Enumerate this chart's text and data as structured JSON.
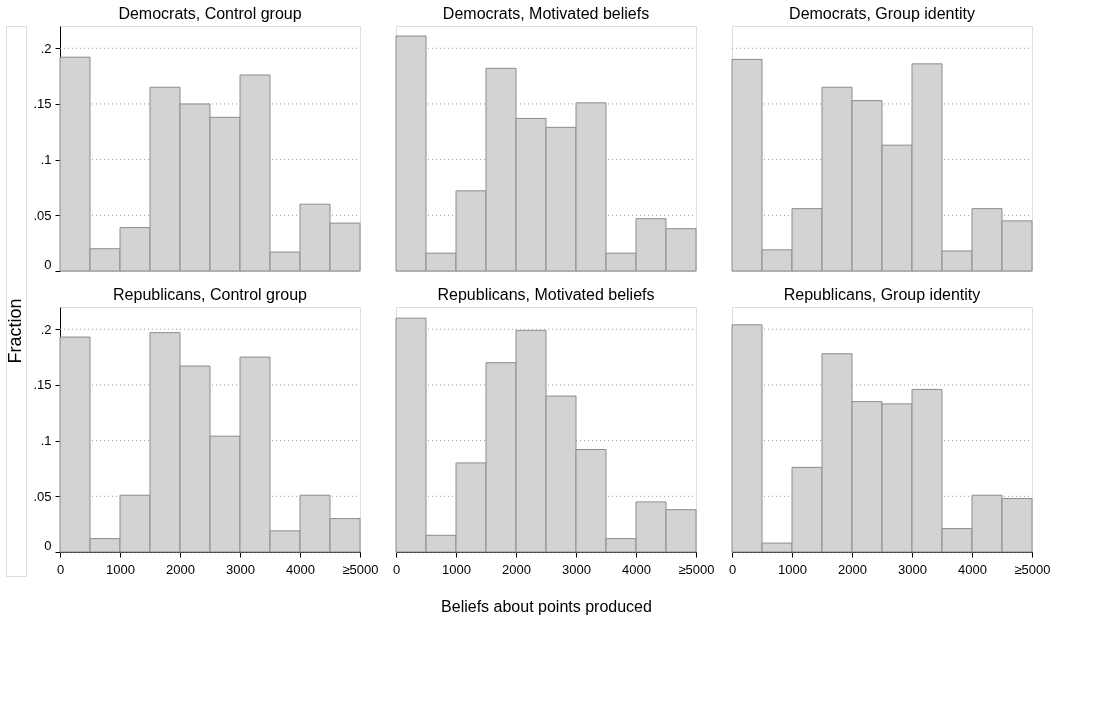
{
  "chart_data": [
    {
      "type": "histogram",
      "title": "Democrats, Control group",
      "ylabel": "Fraction",
      "color": "#d3d3d3",
      "bins": [
        0,
        500,
        1000,
        1500,
        2000,
        2500,
        3000,
        3500,
        4000,
        4500,
        5000
      ],
      "values": [
        0.192,
        0.02,
        0.039,
        0.165,
        0.15,
        0.138,
        0.176,
        0.017,
        0.06,
        0.043
      ],
      "xlim": [
        0,
        5000
      ],
      "ylim": [
        0,
        0.22
      ],
      "yticks": [
        0,
        {
          "value": 0.05,
          "label": ".05"
        },
        {
          "value": 0.1,
          "label": ".1"
        },
        {
          "value": 0.15,
          "label": ".15"
        },
        {
          "value": 0.2,
          "label": ".2"
        }
      ],
      "grid": "y",
      "tick_labels": "y"
    },
    {
      "type": "histogram",
      "title": "Democrats, Motivated beliefs",
      "color": "#d3d3d3",
      "bins": [
        0,
        500,
        1000,
        1500,
        2000,
        2500,
        3000,
        3500,
        4000,
        4500,
        5000
      ],
      "values": [
        0.211,
        0.016,
        0.072,
        0.182,
        0.137,
        0.129,
        0.151,
        0.016,
        0.047,
        0.038
      ],
      "xlim": [
        0,
        5000
      ],
      "ylim": [
        0,
        0.22
      ],
      "yticks": [
        0,
        0.05,
        0.1,
        0.15,
        0.2
      ],
      "grid": "y",
      "tick_labels": false
    },
    {
      "type": "histogram",
      "title": "Democrats, Group identity",
      "color": "#d3d3d3",
      "bins": [
        0,
        500,
        1000,
        1500,
        2000,
        2500,
        3000,
        3500,
        4000,
        4500,
        5000
      ],
      "values": [
        0.19,
        0.019,
        0.056,
        0.165,
        0.153,
        0.113,
        0.186,
        0.018,
        0.056,
        0.045
      ],
      "xlim": [
        0,
        5000
      ],
      "ylim": [
        0,
        0.22
      ],
      "yticks": [
        0,
        0.05,
        0.1,
        0.15,
        0.2
      ],
      "grid": "y",
      "tick_labels": false
    },
    {
      "type": "histogram",
      "title": "Republicans, Control group",
      "color": "#d3d3d3",
      "bins": [
        0,
        500,
        1000,
        1500,
        2000,
        2500,
        3000,
        3500,
        4000,
        4500,
        5000
      ],
      "values": [
        0.193,
        0.012,
        0.051,
        0.197,
        0.167,
        0.104,
        0.175,
        0.019,
        0.051,
        0.03
      ],
      "xlim": [
        0,
        5000
      ],
      "xticks": [
        0,
        1000,
        2000,
        3000,
        4000,
        {
          "value": 5000,
          "label": "≥5000"
        }
      ],
      "ylim": [
        0,
        0.22
      ],
      "yticks": [
        0,
        {
          "value": 0.05,
          "label": ".05"
        },
        {
          "value": 0.1,
          "label": ".1"
        },
        {
          "value": 0.15,
          "label": ".15"
        },
        {
          "value": 0.2,
          "label": ".2"
        }
      ],
      "grid": "y"
    },
    {
      "type": "histogram",
      "title": "Republicans, Motivated beliefs",
      "xlabel": "Beliefs about points produced",
      "color": "#d3d3d3",
      "bins": [
        0,
        500,
        1000,
        1500,
        2000,
        2500,
        3000,
        3500,
        4000,
        4500,
        5000
      ],
      "values": [
        0.21,
        0.015,
        0.08,
        0.17,
        0.199,
        0.14,
        0.092,
        0.012,
        0.045,
        0.038
      ],
      "xlim": [
        0,
        5000
      ],
      "xticks": [
        0,
        1000,
        2000,
        3000,
        4000,
        {
          "value": 5000,
          "label": "≥5000"
        }
      ],
      "ylim": [
        0,
        0.22
      ],
      "yticks": [
        0,
        0.05,
        0.1,
        0.15,
        0.2
      ],
      "grid": "y",
      "tick_labels": "x"
    },
    {
      "type": "histogram",
      "title": "Republicans, Group identity",
      "color": "#d3d3d3",
      "bins": [
        0,
        500,
        1000,
        1500,
        2000,
        2500,
        3000,
        3500,
        4000,
        4500,
        5000
      ],
      "values": [
        0.204,
        0.008,
        0.076,
        0.178,
        0.135,
        0.133,
        0.146,
        0.021,
        0.051,
        0.048
      ],
      "xlim": [
        0,
        5000
      ],
      "xticks": [
        0,
        1000,
        2000,
        3000,
        4000,
        {
          "value": 5000,
          "label": "≥5000"
        }
      ],
      "ylim": [
        0,
        0.22
      ],
      "yticks": [
        0,
        0.05,
        0.1,
        0.15,
        0.2
      ],
      "grid": "y",
      "tick_labels": "x"
    }
  ]
}
